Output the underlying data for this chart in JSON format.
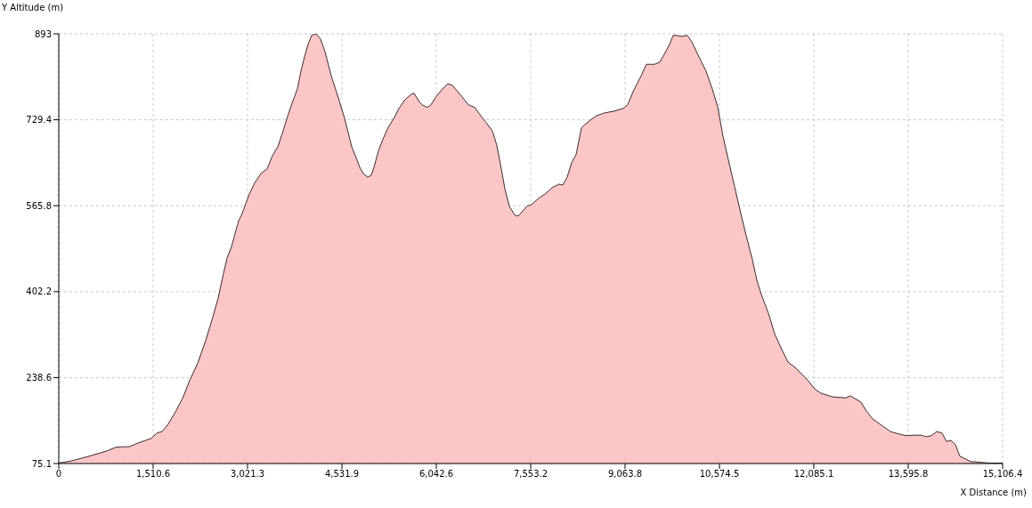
{
  "chart_data": {
    "type": "area",
    "xlabel": "X Distance (m)",
    "ylabel": "Y Altitude (m)",
    "xlim": [
      0,
      15106.4
    ],
    "ylim": [
      75.1,
      893
    ],
    "xticks": [
      0,
      {
        "value": 1510.6,
        "label": "1,510.6"
      },
      {
        "value": 3021.3,
        "label": "3,021.3"
      },
      {
        "value": 4531.9,
        "label": "4,531.9"
      },
      {
        "value": 6042.6,
        "label": "6,042.6"
      },
      {
        "value": 7553.2,
        "label": "7,553.2"
      },
      {
        "value": 9063.8,
        "label": "9,063.8"
      },
      {
        "value": 10574.5,
        "label": "10,574.5"
      },
      {
        "value": 12085.1,
        "label": "12,085.1"
      },
      {
        "value": 13595.8,
        "label": "13,595.8"
      },
      {
        "value": 15106.4,
        "label": "15,106.4"
      }
    ],
    "yticks": [
      75.1,
      238.6,
      402.2,
      565.8,
      729.4,
      893
    ],
    "grid": true,
    "marker": "none",
    "line_style": "solid",
    "x": [
      0,
      200,
      485,
      770,
      912,
      1012,
      1126,
      1268,
      1482,
      1568,
      1653,
      1739,
      1853,
      1981,
      2095,
      2223,
      2351,
      2451,
      2551,
      2622,
      2693,
      2765,
      2836,
      2879,
      2936,
      2993,
      3050,
      3135,
      3235,
      3335,
      3420,
      3506,
      3577,
      3662,
      3734,
      3819,
      3876,
      3933,
      3990,
      4047,
      4119,
      4190,
      4261,
      4361,
      4475,
      4575,
      4689,
      4774,
      4817,
      4874,
      4945,
      5002,
      5045,
      5116,
      5187,
      5273,
      5373,
      5444,
      5544,
      5643,
      5686,
      5757,
      5814,
      5900,
      5957,
      6042,
      6142,
      6228,
      6299,
      6384,
      6470,
      6555,
      6655,
      6755,
      6840,
      6940,
      7011,
      7083,
      7140,
      7211,
      7297,
      7354,
      7425,
      7496,
      7567,
      7681,
      7781,
      7895,
      8009,
      8066,
      8137,
      8209,
      8280,
      8365,
      8408,
      8522,
      8608,
      8722,
      8893,
      9035,
      9106,
      9192,
      9320,
      9406,
      9534,
      9619,
      9691,
      9776,
      9833,
      9890,
      9962,
      10061,
      10132,
      10218,
      10289,
      10360,
      10418,
      10460,
      10546,
      10631,
      10717,
      10817,
      10916,
      11002,
      11102,
      11173,
      11244,
      11358,
      11458,
      11572,
      11672,
      11786,
      11885,
      11985,
      12099,
      12199,
      12384,
      12598,
      12669,
      12740,
      12840,
      12926,
      13026,
      13168,
      13310,
      13453,
      13567,
      13667,
      13809,
      13880,
      13966,
      14052,
      14137,
      14208,
      14280,
      14351,
      14422,
      14593,
      14878,
      15106.4
    ],
    "series": [
      {
        "color": "#fdc6c6",
        "values": [
          76,
          80,
          89,
          99,
          106,
          107,
          107,
          114,
          123,
          133,
          136,
          148,
          170,
          199,
          233,
          266,
          309,
          348,
          390,
          429,
          466,
          488,
          519,
          537,
          551,
          570,
          588,
          609,
          627,
          636,
          661,
          678,
          703,
          736,
          761,
          788,
          822,
          849,
          873,
          890,
          893,
          883,
          859,
          813,
          771,
          732,
          678,
          653,
          639,
          627,
          620,
          624,
          639,
          670,
          692,
          715,
          734,
          751,
          768,
          778,
          780,
          766,
          758,
          753,
          758,
          774,
          788,
          798,
          795,
          783,
          771,
          758,
          753,
          737,
          724,
          708,
          681,
          636,
          598,
          565,
          548,
          546,
          556,
          565,
          568,
          580,
          588,
          600,
          607,
          605,
          620,
          648,
          663,
          714,
          719,
          730,
          737,
          742,
          746,
          751,
          758,
          783,
          813,
          835,
          835,
          839,
          854,
          873,
          890,
          890,
          888,
          890,
          878,
          856,
          839,
          822,
          802,
          788,
          754,
          698,
          653,
          602,
          551,
          509,
          463,
          424,
          397,
          361,
          322,
          292,
          268,
          258,
          246,
          234,
          217,
          209,
          202,
          200,
          204,
          199,
          192,
          175,
          160,
          148,
          136,
          131,
          128,
          129,
          129,
          126,
          128,
          136,
          133,
          117,
          119,
          111,
          89,
          79,
          76,
          76
        ]
      }
    ]
  }
}
